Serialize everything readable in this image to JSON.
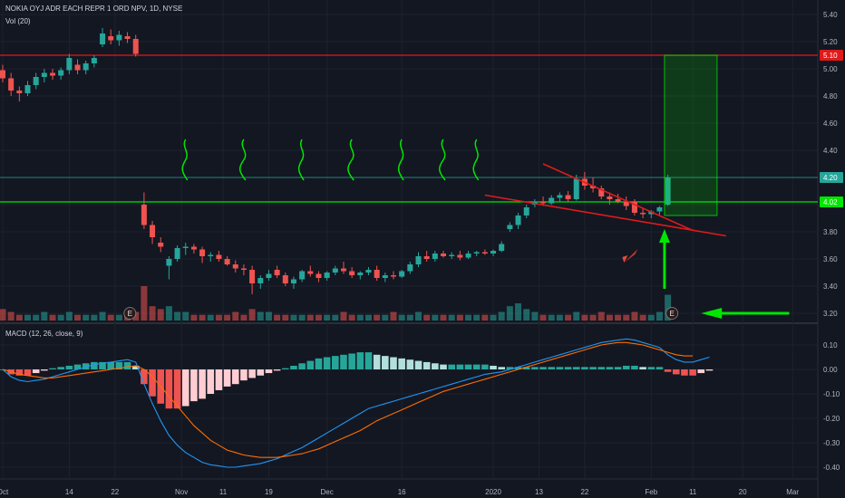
{
  "header": {
    "symbol_title": "NOKIA OYJ ADR EACH REPR 1 ORD NPV, 1D, NYSE",
    "volume_label": "Vol (20)",
    "macd_label": "MACD (12, 26, close, 9)"
  },
  "colors": {
    "background": "#131722",
    "up": "#26a69a",
    "down": "#ef5350",
    "hist_up_strong": "#26a69a",
    "hist_up_weak": "#b2dfdb",
    "hist_down_strong": "#ef5350",
    "hist_down_weak": "#ffcdd2",
    "macd_line": "#2196f3",
    "signal_line": "#ff6d00",
    "annotation_green": "#00e600",
    "annotation_red": "#e01a1a"
  },
  "chart_data": [
    {
      "type": "candlestick",
      "price_axis": {
        "range": [
          3.1,
          5.48
        ],
        "ticks": [
          "5.40",
          "5.20",
          "5.00",
          "4.80",
          "4.60",
          "4.40",
          "4.20",
          "4.00",
          "3.80",
          "3.60",
          "3.40",
          "3.20"
        ]
      },
      "x_axis_ticks": [
        "Oct",
        "14",
        "22",
        "Nov",
        "11",
        "19",
        "Dec",
        "16",
        "2020",
        "13",
        "22",
        "Feb",
        "11",
        "20",
        "Mar"
      ],
      "ohlc": [
        [
          4.99,
          5.03,
          4.9,
          4.93
        ],
        [
          4.93,
          4.97,
          4.8,
          4.84
        ],
        [
          4.84,
          4.87,
          4.76,
          4.82
        ],
        [
          4.82,
          4.91,
          4.8,
          4.88
        ],
        [
          4.88,
          4.97,
          4.85,
          4.94
        ],
        [
          4.94,
          5.0,
          4.9,
          4.97
        ],
        [
          4.97,
          5.0,
          4.92,
          4.95
        ],
        [
          4.95,
          5.01,
          4.92,
          4.99
        ],
        [
          4.99,
          5.11,
          4.96,
          5.08
        ],
        [
          5.03,
          5.07,
          4.96,
          4.99
        ],
        [
          4.99,
          5.06,
          4.96,
          5.04
        ],
        [
          5.04,
          5.1,
          5.01,
          5.08
        ],
        [
          5.18,
          5.3,
          5.16,
          5.26
        ],
        [
          5.24,
          5.29,
          5.18,
          5.21
        ],
        [
          5.21,
          5.28,
          5.17,
          5.25
        ],
        [
          5.24,
          5.27,
          5.19,
          5.22
        ],
        [
          5.22,
          5.25,
          5.09,
          5.11
        ],
        [
          4.0,
          4.09,
          3.82,
          3.85
        ],
        [
          3.85,
          3.88,
          3.71,
          3.76
        ],
        [
          3.72,
          3.76,
          3.65,
          3.69
        ],
        [
          3.55,
          3.62,
          3.45,
          3.6
        ],
        [
          3.6,
          3.7,
          3.58,
          3.68
        ],
        [
          3.68,
          3.72,
          3.63,
          3.69
        ],
        [
          3.69,
          3.71,
          3.64,
          3.67
        ],
        [
          3.67,
          3.69,
          3.57,
          3.62
        ],
        [
          3.62,
          3.65,
          3.58,
          3.63
        ],
        [
          3.63,
          3.66,
          3.58,
          3.6
        ],
        [
          3.6,
          3.62,
          3.55,
          3.56
        ],
        [
          3.56,
          3.59,
          3.5,
          3.53
        ],
        [
          3.53,
          3.56,
          3.48,
          3.52
        ],
        [
          3.52,
          3.55,
          3.34,
          3.42
        ],
        [
          3.42,
          3.48,
          3.38,
          3.46
        ],
        [
          3.46,
          3.52,
          3.44,
          3.49
        ],
        [
          3.52,
          3.55,
          3.46,
          3.48
        ],
        [
          3.48,
          3.5,
          3.4,
          3.42
        ],
        [
          3.42,
          3.47,
          3.38,
          3.45
        ],
        [
          3.45,
          3.52,
          3.43,
          3.51
        ],
        [
          3.51,
          3.55,
          3.47,
          3.49
        ],
        [
          3.49,
          3.51,
          3.43,
          3.46
        ],
        [
          3.46,
          3.51,
          3.44,
          3.5
        ],
        [
          3.5,
          3.55,
          3.48,
          3.53
        ],
        [
          3.53,
          3.58,
          3.49,
          3.51
        ],
        [
          3.51,
          3.54,
          3.46,
          3.48
        ],
        [
          3.48,
          3.51,
          3.45,
          3.5
        ],
        [
          3.5,
          3.54,
          3.48,
          3.52
        ],
        [
          3.52,
          3.55,
          3.44,
          3.46
        ],
        [
          3.46,
          3.5,
          3.43,
          3.48
        ],
        [
          3.48,
          3.51,
          3.45,
          3.47
        ],
        [
          3.47,
          3.52,
          3.46,
          3.51
        ],
        [
          3.51,
          3.58,
          3.49,
          3.56
        ],
        [
          3.56,
          3.65,
          3.54,
          3.62
        ],
        [
          3.62,
          3.66,
          3.58,
          3.6
        ],
        [
          3.6,
          3.66,
          3.58,
          3.64
        ],
        [
          3.64,
          3.66,
          3.61,
          3.62
        ],
        [
          3.62,
          3.65,
          3.6,
          3.63
        ],
        [
          3.63,
          3.66,
          3.59,
          3.61
        ],
        [
          3.61,
          3.66,
          3.6,
          3.64
        ],
        [
          3.64,
          3.66,
          3.62,
          3.65
        ],
        [
          3.65,
          3.67,
          3.63,
          3.64
        ],
        [
          3.64,
          3.67,
          3.62,
          3.66
        ],
        [
          3.66,
          3.73,
          3.65,
          3.71
        ],
        [
          3.82,
          3.87,
          3.8,
          3.85
        ],
        [
          3.85,
          3.94,
          3.82,
          3.92
        ],
        [
          3.92,
          4.0,
          3.9,
          3.98
        ],
        [
          4.0,
          4.04,
          3.98,
          4.02
        ],
        [
          4.02,
          4.06,
          3.99,
          4.01
        ],
        [
          4.01,
          4.07,
          4.0,
          4.05
        ],
        [
          4.05,
          4.09,
          4.02,
          4.07
        ],
        [
          4.07,
          4.1,
          4.02,
          4.04
        ],
        [
          4.04,
          4.22,
          4.03,
          4.19
        ],
        [
          4.19,
          4.24,
          4.11,
          4.14
        ],
        [
          4.14,
          4.2,
          4.09,
          4.12
        ],
        [
          4.12,
          4.14,
          4.04,
          4.06
        ],
        [
          4.06,
          4.09,
          4.0,
          4.04
        ],
        [
          4.04,
          4.08,
          4.01,
          4.02
        ],
        [
          4.02,
          4.06,
          3.96,
          3.99
        ],
        [
          4.02,
          4.04,
          3.92,
          3.94
        ],
        [
          3.94,
          3.97,
          3.9,
          3.93
        ],
        [
          3.93,
          3.96,
          3.9,
          3.95
        ],
        [
          3.95,
          3.99,
          3.92,
          3.98
        ],
        [
          4.0,
          4.22,
          3.99,
          4.2
        ]
      ],
      "volume_axis": {
        "max": 12
      },
      "volume": [
        4,
        3,
        2,
        2,
        2,
        3,
        2,
        2,
        3,
        2,
        2,
        2,
        3,
        2,
        2,
        2,
        3,
        12,
        5,
        4,
        5,
        3,
        3,
        2,
        2,
        2,
        2,
        2,
        3,
        2,
        4,
        3,
        3,
        2,
        2,
        2,
        2,
        2,
        2,
        2,
        2,
        3,
        2,
        2,
        2,
        2,
        2,
        3,
        2,
        2,
        3,
        2,
        2,
        2,
        2,
        2,
        2,
        2,
        2,
        2,
        3,
        5,
        6,
        4,
        3,
        2,
        2,
        2,
        2,
        3,
        2,
        2,
        3,
        2,
        2,
        2,
        3,
        2,
        2,
        3,
        9
      ],
      "horizontal_levels": [
        {
          "value": 5.1,
          "label": "5.10",
          "color": "#e01a1a"
        },
        {
          "value": 4.02,
          "label": "4.02",
          "color": "#00e600"
        },
        {
          "value": 4.2,
          "label": "4.20",
          "color": "#26a69a"
        }
      ],
      "annotations": [
        {
          "kind": "earnings-marker",
          "label": "E"
        },
        {
          "kind": "earnings-marker",
          "label": "E"
        },
        {
          "kind": "rocket-icon"
        },
        {
          "kind": "long-position-box"
        },
        {
          "kind": "falling-wedge-lines"
        },
        {
          "kind": "up-arrow"
        },
        {
          "kind": "left-arrow"
        },
        {
          "kind": "squiggle-drawings"
        }
      ]
    },
    {
      "type": "line",
      "name": "MACD (12, 26, close, 9)",
      "y_axis": {
        "range": [
          -0.43,
          0.14
        ],
        "ticks": [
          "0.10",
          "0.00",
          "-0.10",
          "-0.20",
          "-0.30",
          "-0.40"
        ]
      },
      "series": [
        {
          "role": "macd",
          "values": [
            0.0,
            -0.03,
            -0.045,
            -0.05,
            -0.045,
            -0.04,
            -0.03,
            -0.02,
            -0.01,
            0.0,
            0.01,
            0.02,
            0.025,
            0.03,
            0.035,
            0.04,
            0.03,
            -0.06,
            -0.14,
            -0.21,
            -0.27,
            -0.31,
            -0.34,
            -0.36,
            -0.38,
            -0.39,
            -0.395,
            -0.4,
            -0.4,
            -0.395,
            -0.39,
            -0.385,
            -0.375,
            -0.365,
            -0.35,
            -0.335,
            -0.32,
            -0.3,
            -0.28,
            -0.26,
            -0.24,
            -0.22,
            -0.2,
            -0.18,
            -0.16,
            -0.15,
            -0.14,
            -0.13,
            -0.12,
            -0.11,
            -0.1,
            -0.09,
            -0.08,
            -0.07,
            -0.06,
            -0.05,
            -0.04,
            -0.03,
            -0.02,
            -0.015,
            -0.01,
            0.0,
            0.01,
            0.02,
            0.03,
            0.04,
            0.05,
            0.06,
            0.07,
            0.08,
            0.09,
            0.1,
            0.11,
            0.115,
            0.12,
            0.125,
            0.12,
            0.11,
            0.1,
            0.09,
            0.06,
            0.04,
            0.03,
            0.03,
            0.04,
            0.05
          ]
        },
        {
          "role": "signal",
          "values": [
            0.0,
            -0.01,
            -0.02,
            -0.025,
            -0.03,
            -0.035,
            -0.035,
            -0.03,
            -0.025,
            -0.02,
            -0.015,
            -0.01,
            -0.005,
            0.0,
            0.005,
            0.01,
            0.015,
            0.0,
            -0.03,
            -0.07,
            -0.11,
            -0.15,
            -0.19,
            -0.23,
            -0.26,
            -0.29,
            -0.31,
            -0.33,
            -0.34,
            -0.35,
            -0.355,
            -0.36,
            -0.36,
            -0.36,
            -0.355,
            -0.35,
            -0.345,
            -0.335,
            -0.325,
            -0.31,
            -0.295,
            -0.28,
            -0.265,
            -0.25,
            -0.23,
            -0.21,
            -0.195,
            -0.18,
            -0.165,
            -0.15,
            -0.135,
            -0.12,
            -0.105,
            -0.09,
            -0.08,
            -0.07,
            -0.06,
            -0.05,
            -0.04,
            -0.03,
            -0.02,
            -0.01,
            0.0,
            0.01,
            0.02,
            0.03,
            0.04,
            0.05,
            0.06,
            0.07,
            0.08,
            0.09,
            0.1,
            0.105,
            0.11,
            0.11,
            0.105,
            0.1,
            0.09,
            0.08,
            0.07,
            0.06,
            0.055,
            0.055
          ]
        },
        {
          "role": "histogram",
          "values": [
            0.0,
            -0.02,
            -0.025,
            -0.025,
            -0.015,
            -0.005,
            0.005,
            0.01,
            0.015,
            0.02,
            0.025,
            0.03,
            0.03,
            0.03,
            0.03,
            0.03,
            0.015,
            -0.06,
            -0.11,
            -0.14,
            -0.16,
            -0.16,
            -0.15,
            -0.13,
            -0.12,
            -0.1,
            -0.085,
            -0.07,
            -0.06,
            -0.045,
            -0.035,
            -0.025,
            -0.015,
            -0.005,
            0.005,
            0.015,
            0.025,
            0.035,
            0.045,
            0.05,
            0.055,
            0.06,
            0.065,
            0.07,
            0.07,
            0.06,
            0.055,
            0.05,
            0.045,
            0.04,
            0.035,
            0.03,
            0.025,
            0.02,
            0.02,
            0.02,
            0.02,
            0.02,
            0.02,
            0.015,
            0.01,
            0.01,
            0.01,
            0.01,
            0.01,
            0.01,
            0.01,
            0.01,
            0.01,
            0.01,
            0.01,
            0.01,
            0.01,
            0.01,
            0.01,
            0.015,
            0.015,
            0.01,
            0.01,
            0.01,
            -0.01,
            -0.02,
            -0.025,
            -0.025,
            -0.015,
            -0.005
          ]
        }
      ]
    }
  ]
}
